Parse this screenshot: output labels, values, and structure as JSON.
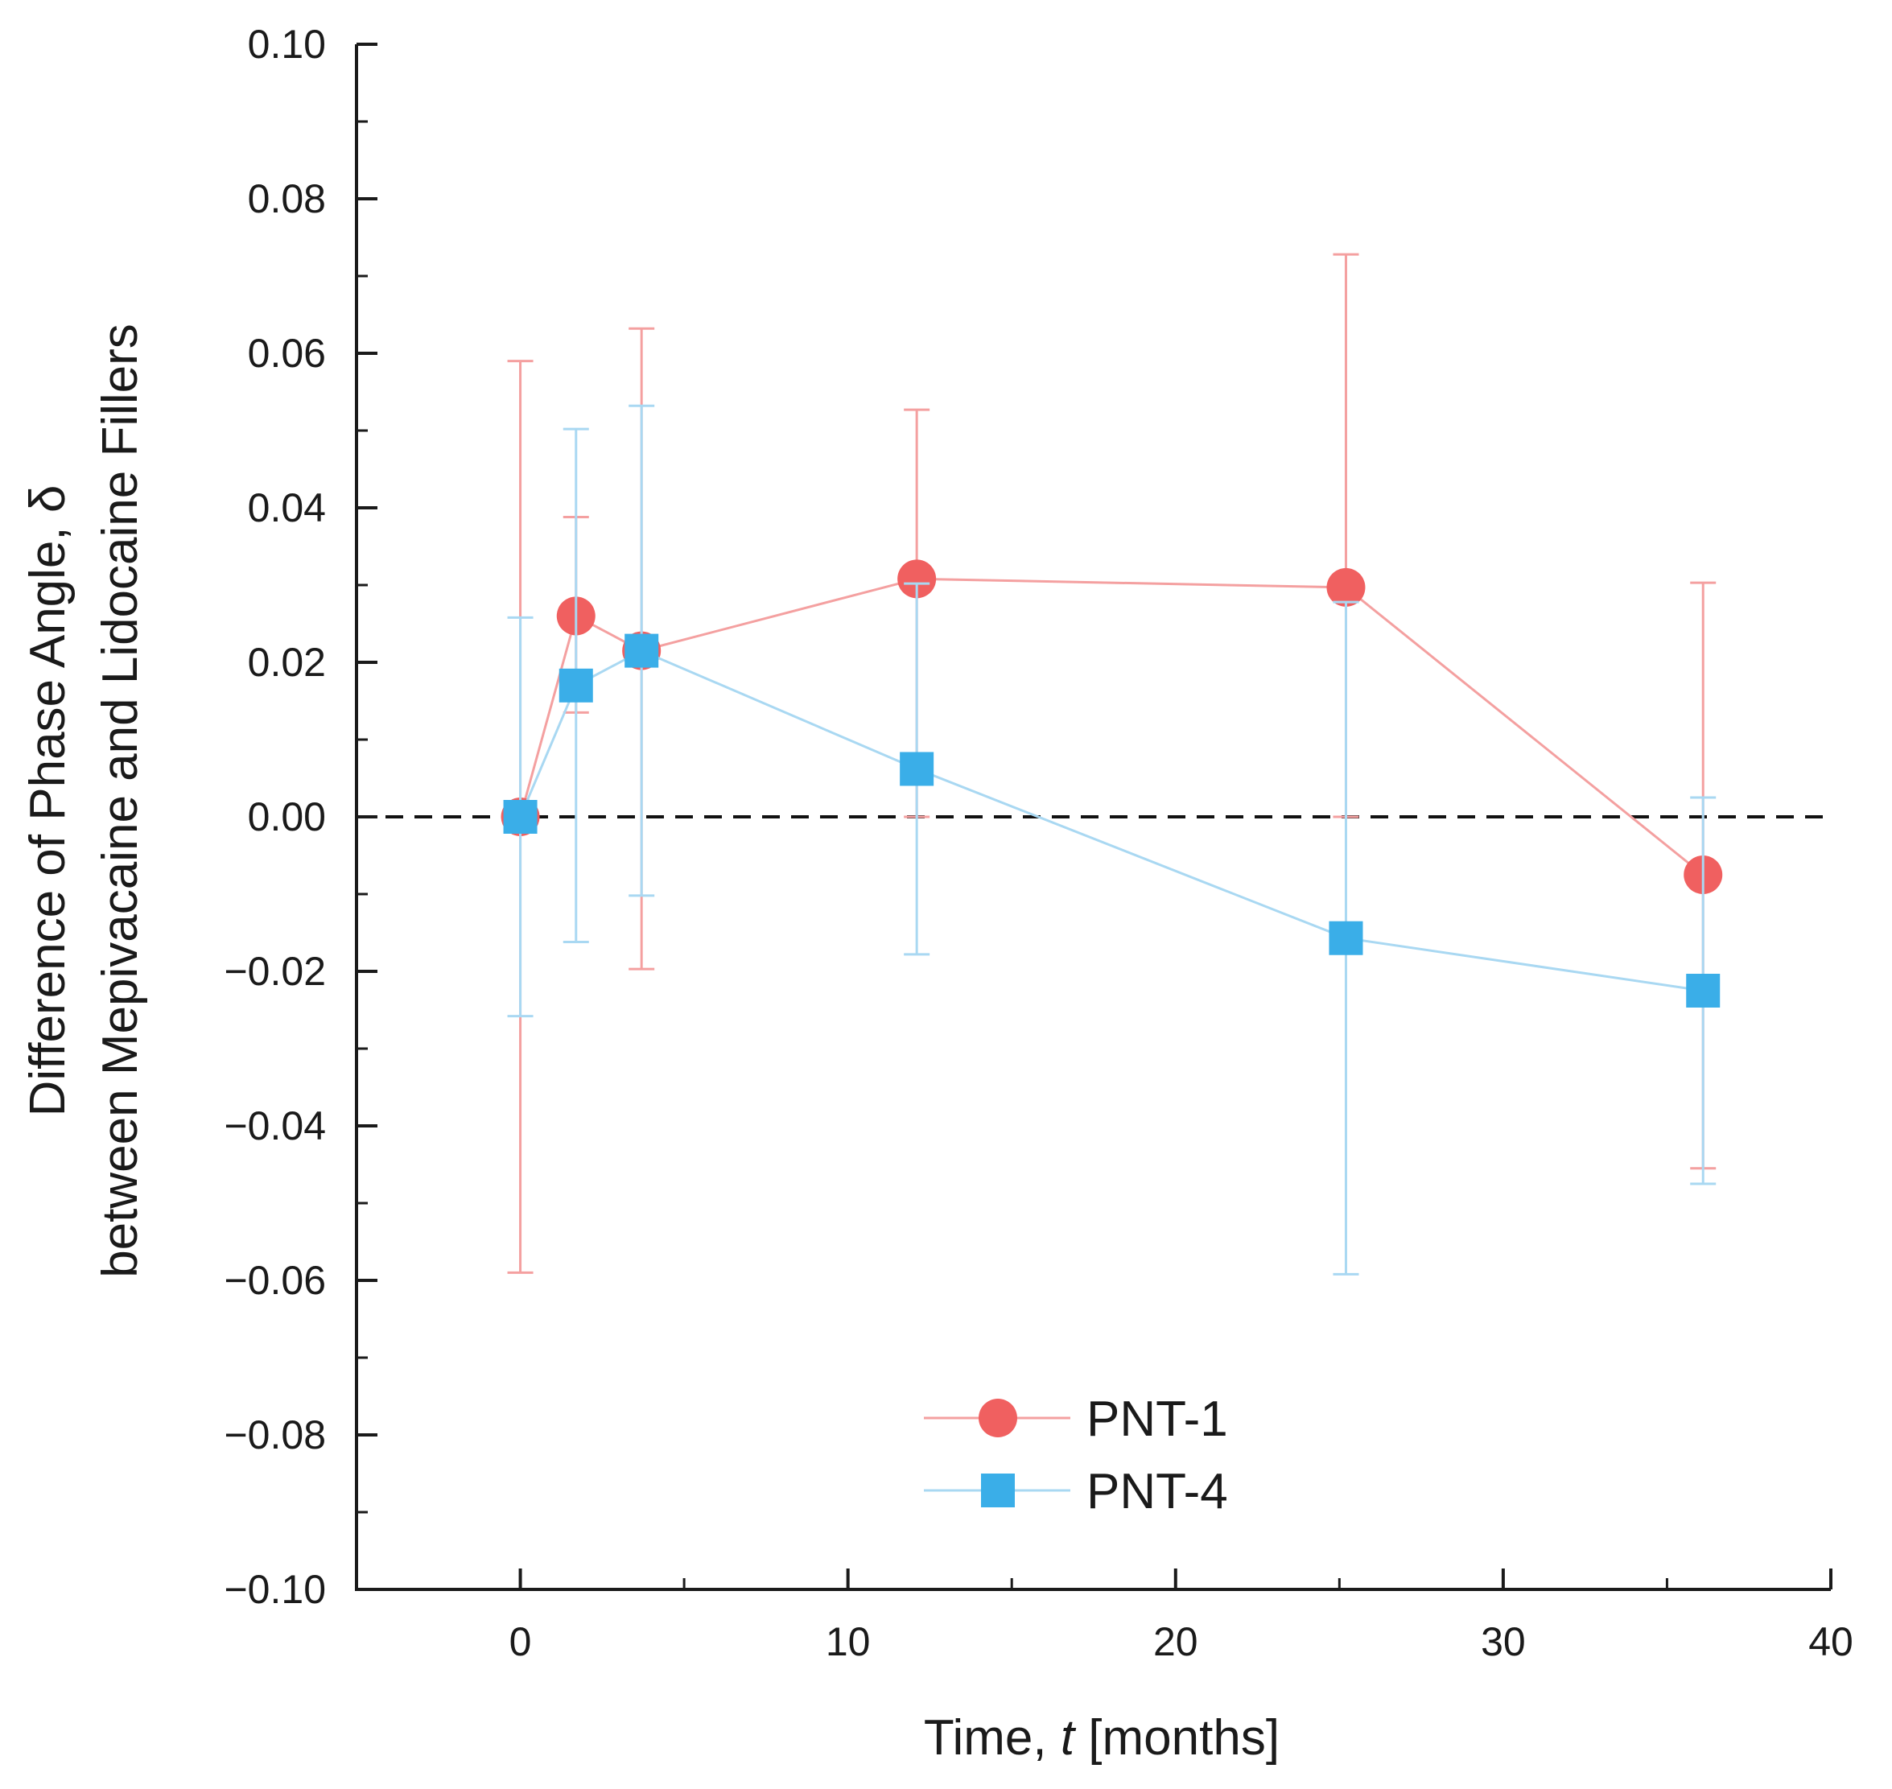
{
  "chart_data": {
    "type": "scatter",
    "title": "",
    "xlabel_prefix": "Time, ",
    "xlabel_var": "t",
    "xlabel_suffix": " [months]",
    "ylabel_line1": "Difference of Phase Angle, δ",
    "ylabel_line2": "between Mepivacaine and Lidocaine Fillers",
    "xlim": [
      -5,
      40
    ],
    "ylim": [
      -0.1,
      0.1
    ],
    "xticks": [
      0,
      10,
      20,
      30,
      40
    ],
    "xtick_labels": [
      "0",
      "10",
      "20",
      "30",
      "40"
    ],
    "yticks": [
      0.1,
      0.08,
      0.06,
      0.04,
      0.02,
      0.0,
      -0.02,
      -0.04,
      -0.06,
      -0.08,
      -0.1
    ],
    "ytick_labels": [
      "0.10",
      "0.08",
      "0.06",
      "0.04",
      "0.02",
      "0.00",
      "−0.02",
      "−0.04",
      "−0.06",
      "−0.08",
      "−0.10"
    ],
    "reference_line": 0.0,
    "legend_position": "bottom-center",
    "series": [
      {
        "name": "PNT-1",
        "marker": "circle",
        "color": "#f06060",
        "line_color": "#f4a0a0",
        "x": [
          0,
          1.7,
          3.7,
          12.1,
          25.2,
          36.1
        ],
        "y": [
          0.0,
          0.026,
          0.0215,
          0.0308,
          0.0297,
          -0.0075
        ],
        "err_low": [
          -0.059,
          0.0135,
          -0.0197,
          0.0,
          0.0,
          -0.0455
        ],
        "err_high": [
          0.059,
          0.0388,
          0.0632,
          0.0527,
          0.0728,
          0.0303
        ]
      },
      {
        "name": "PNT-4",
        "marker": "square",
        "color": "#3aaee8",
        "line_color": "#a9d8f2",
        "x": [
          0,
          1.7,
          3.7,
          12.1,
          25.2,
          36.1
        ],
        "y": [
          0.0,
          0.017,
          0.0215,
          0.0062,
          -0.0157,
          -0.0225
        ],
        "err_low": [
          -0.0258,
          -0.0162,
          -0.0102,
          -0.0178,
          -0.0592,
          -0.0475
        ],
        "err_high": [
          0.0258,
          0.0502,
          0.0532,
          0.0302,
          0.0278,
          0.0025
        ]
      }
    ]
  }
}
